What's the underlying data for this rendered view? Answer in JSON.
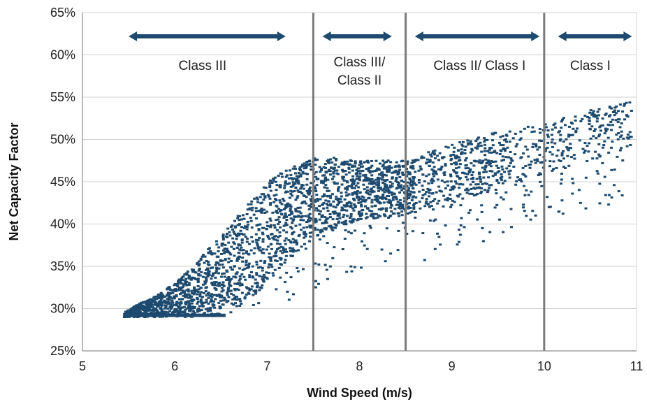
{
  "chart_data": {
    "type": "scatter",
    "title": "",
    "xlabel": "Wind Speed (m/s)",
    "ylabel": "Net Capacity Factor",
    "xlim": [
      5,
      11
    ],
    "ylim": [
      25,
      65
    ],
    "x_ticks": [
      "5",
      "6",
      "7",
      "8",
      "9",
      "10",
      "11"
    ],
    "y_ticks": [
      "25%",
      "30%",
      "35%",
      "40%",
      "45%",
      "50%",
      "55%",
      "60%",
      "65%"
    ],
    "grid": "horizontal",
    "point_color": "#1d4a6e",
    "dividers": [
      7.5,
      8.5,
      10.0
    ],
    "class_regions": [
      {
        "label": "Class III",
        "arrow_from": 5.5,
        "arrow_to": 7.2,
        "label_x": 6.3
      },
      {
        "label": "Class III/",
        "label2": "Class II",
        "arrow_from": 7.6,
        "arrow_to": 8.35,
        "label_x": 8.0
      },
      {
        "label": "Class II/ Class I",
        "arrow_from": 8.6,
        "arrow_to": 9.95,
        "label_x": 9.3
      },
      {
        "label": "Class I",
        "arrow_from": 10.15,
        "arrow_to": 10.95,
        "label_x": 10.5
      }
    ],
    "series": [
      {
        "description_points_sample": true,
        "density_profile": [
          {
            "x": 5.45,
            "y_low": 29.0,
            "y_high": 29.5
          },
          {
            "x": 5.6,
            "y_low": 29.0,
            "y_high": 30.5
          },
          {
            "x": 5.8,
            "y_low": 29.0,
            "y_high": 31.5
          },
          {
            "x": 6.0,
            "y_low": 29.0,
            "y_high": 33.0
          },
          {
            "x": 6.2,
            "y_low": 29.0,
            "y_high": 35.0
          },
          {
            "x": 6.4,
            "y_low": 29.0,
            "y_high": 37.5
          },
          {
            "x": 6.6,
            "y_low": 29.5,
            "y_high": 40.0
          },
          {
            "x": 6.8,
            "y_low": 31.0,
            "y_high": 42.5
          },
          {
            "x": 7.0,
            "y_low": 33.0,
            "y_high": 45.0
          },
          {
            "x": 7.2,
            "y_low": 35.5,
            "y_high": 46.5
          },
          {
            "x": 7.4,
            "y_low": 37.5,
            "y_high": 47.5
          },
          {
            "x": 7.6,
            "y_low": 39.0,
            "y_high": 48.0
          },
          {
            "x": 8.0,
            "y_low": 40.5,
            "y_high": 47.5
          },
          {
            "x": 8.5,
            "y_low": 41.0,
            "y_high": 47.5
          },
          {
            "x": 9.0,
            "y_low": 42.5,
            "y_high": 49.5
          },
          {
            "x": 9.5,
            "y_low": 44.0,
            "y_high": 51.0
          },
          {
            "x": 10.0,
            "y_low": 46.0,
            "y_high": 52.0
          },
          {
            "x": 10.5,
            "y_low": 47.5,
            "y_high": 53.5
          },
          {
            "x": 10.95,
            "y_low": 49.0,
            "y_high": 54.5
          }
        ]
      }
    ]
  }
}
